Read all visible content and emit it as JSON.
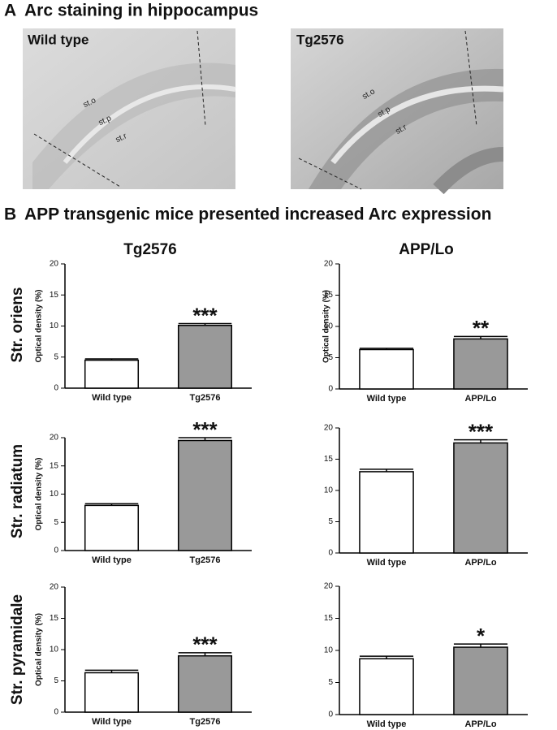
{
  "panel_a": {
    "label": "A",
    "title": "Arc staining in hippocampus",
    "images": [
      {
        "label": "Wild type",
        "annotations": [
          "st.o",
          "st.p",
          "st.r"
        ]
      },
      {
        "label": "Tg2576",
        "annotations": [
          "st.o",
          "st.p",
          "st.r"
        ]
      }
    ]
  },
  "panel_b": {
    "label": "B",
    "title": "APP transgenic mice presented increased Arc expression",
    "columns": [
      "Tg2576",
      "APP/Lo"
    ],
    "rows": [
      "Str. oriens",
      "Str. radiatum",
      "Str. pyramidale"
    ]
  },
  "chart_data": [
    {
      "type": "bar",
      "y_label": "Optical density (%)",
      "categories": [
        "Wild type",
        "Tg2576"
      ],
      "values": [
        4.5,
        10.1
      ],
      "errors": [
        0.2,
        0.3
      ],
      "colors": [
        "#ffffff",
        "#999999"
      ],
      "annotation": "***",
      "ylim": [
        0,
        20
      ],
      "yticks": [
        0,
        5,
        10,
        15,
        20
      ]
    },
    {
      "type": "bar",
      "y_label": "Optical density (%)",
      "categories": [
        "Wild type",
        "APP/Lo"
      ],
      "values": [
        6.3,
        8.0
      ],
      "errors": [
        0.2,
        0.4
      ],
      "colors": [
        "#ffffff",
        "#999999"
      ],
      "annotation": "**",
      "ylim": [
        0,
        20
      ],
      "yticks": [
        0,
        5,
        10,
        15,
        20
      ]
    },
    {
      "type": "bar",
      "y_label": "Optical density (%)",
      "categories": [
        "Wild type",
        "Tg2576"
      ],
      "values": [
        8.0,
        19.5
      ],
      "errors": [
        0.3,
        0.5
      ],
      "colors": [
        "#ffffff",
        "#999999"
      ],
      "annotation": "***",
      "ylim": [
        0,
        20
      ],
      "yticks": [
        0,
        5,
        10,
        15,
        20
      ]
    },
    {
      "type": "bar",
      "categories": [
        "Wild type",
        "APP/Lo"
      ],
      "values": [
        13.0,
        17.6
      ],
      "errors": [
        0.4,
        0.5
      ],
      "colors": [
        "#ffffff",
        "#999999"
      ],
      "annotation": "***",
      "ylim": [
        0,
        20
      ],
      "yticks": [
        0,
        5,
        10,
        15,
        20
      ]
    },
    {
      "type": "bar",
      "y_label": "Optical density (%)",
      "categories": [
        "Wild type",
        "Tg2576"
      ],
      "values": [
        6.3,
        9.0
      ],
      "errors": [
        0.4,
        0.5
      ],
      "colors": [
        "#ffffff",
        "#999999"
      ],
      "annotation": "***",
      "ylim": [
        0,
        20
      ],
      "yticks": [
        0,
        5,
        10,
        15,
        20
      ]
    },
    {
      "type": "bar",
      "categories": [
        "Wild type",
        "APP/Lo"
      ],
      "values": [
        8.7,
        10.5
      ],
      "errors": [
        0.4,
        0.5
      ],
      "colors": [
        "#ffffff",
        "#999999"
      ],
      "annotation": "*",
      "ylim": [
        0,
        20
      ],
      "yticks": [
        0,
        5,
        10,
        15,
        20
      ]
    }
  ]
}
